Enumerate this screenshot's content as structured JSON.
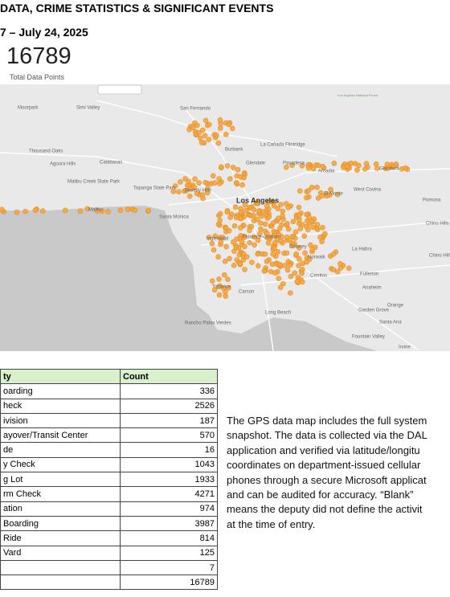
{
  "header": {
    "title": "DATA, CRIME STATISTICS & SIGNIFICANT EVENTS",
    "dates": "7 – July 24, 2025",
    "total": "16789",
    "total_label": "Total Data Points"
  },
  "map": {
    "labels": [
      "Moorpark",
      "Simi Valley",
      "San Fernando",
      "Burbank",
      "La Cañada Flintridge",
      "Glendale",
      "Pasadena",
      "Arcadia",
      "Glendora",
      "Thousand Oaks",
      "Agoura Hills",
      "Calabasas",
      "Malibu Creek State Park",
      "Topanga State Park",
      "Beverly Hills",
      "Los Angeles",
      "El Monte",
      "West Covina",
      "Pomona",
      "Chino Hills",
      "Malibu",
      "Santa Monica",
      "Inglewood",
      "Florence-Graham",
      "Downey",
      "Norwalk",
      "La Habra",
      "Chino Hills State Park",
      "Cerritos",
      "Fullerton",
      "Torrance",
      "Carson",
      "Anaheim",
      "Orange",
      "Long Beach",
      "Garden Grove",
      "Santa Ana",
      "Rancho Palos Verdes",
      "Fountain Valley",
      "Irvine",
      "Los Angeles National Forest"
    ]
  },
  "table": {
    "header": [
      "ty",
      "Count"
    ],
    "rows": [
      [
        "oarding",
        336
      ],
      [
        "heck",
        2526
      ],
      [
        "ivision",
        187
      ],
      [
        "ayover/Transit Center",
        570
      ],
      [
        "de",
        16
      ],
      [
        "y Check",
        1043
      ],
      [
        "g Lot",
        1933
      ],
      [
        "rm Check",
        4271
      ],
      [
        "ation",
        974
      ],
      [
        "Boarding",
        3987
      ],
      [
        "Ride",
        814
      ],
      [
        "Vard",
        125
      ],
      [
        null,
        7
      ],
      [
        null,
        16789
      ]
    ]
  },
  "paragraph": [
    "The GPS data map includes the full system",
    "snapshot. The data is collected via the DAL",
    "application and verified via latitude/longitu",
    "coordinates on department-issued cellular",
    "phones through a secure Microsoft applicat",
    "and can be audited for accuracy. “Blank”",
    "means the deputy did not define the activit",
    "at the time of entry."
  ]
}
